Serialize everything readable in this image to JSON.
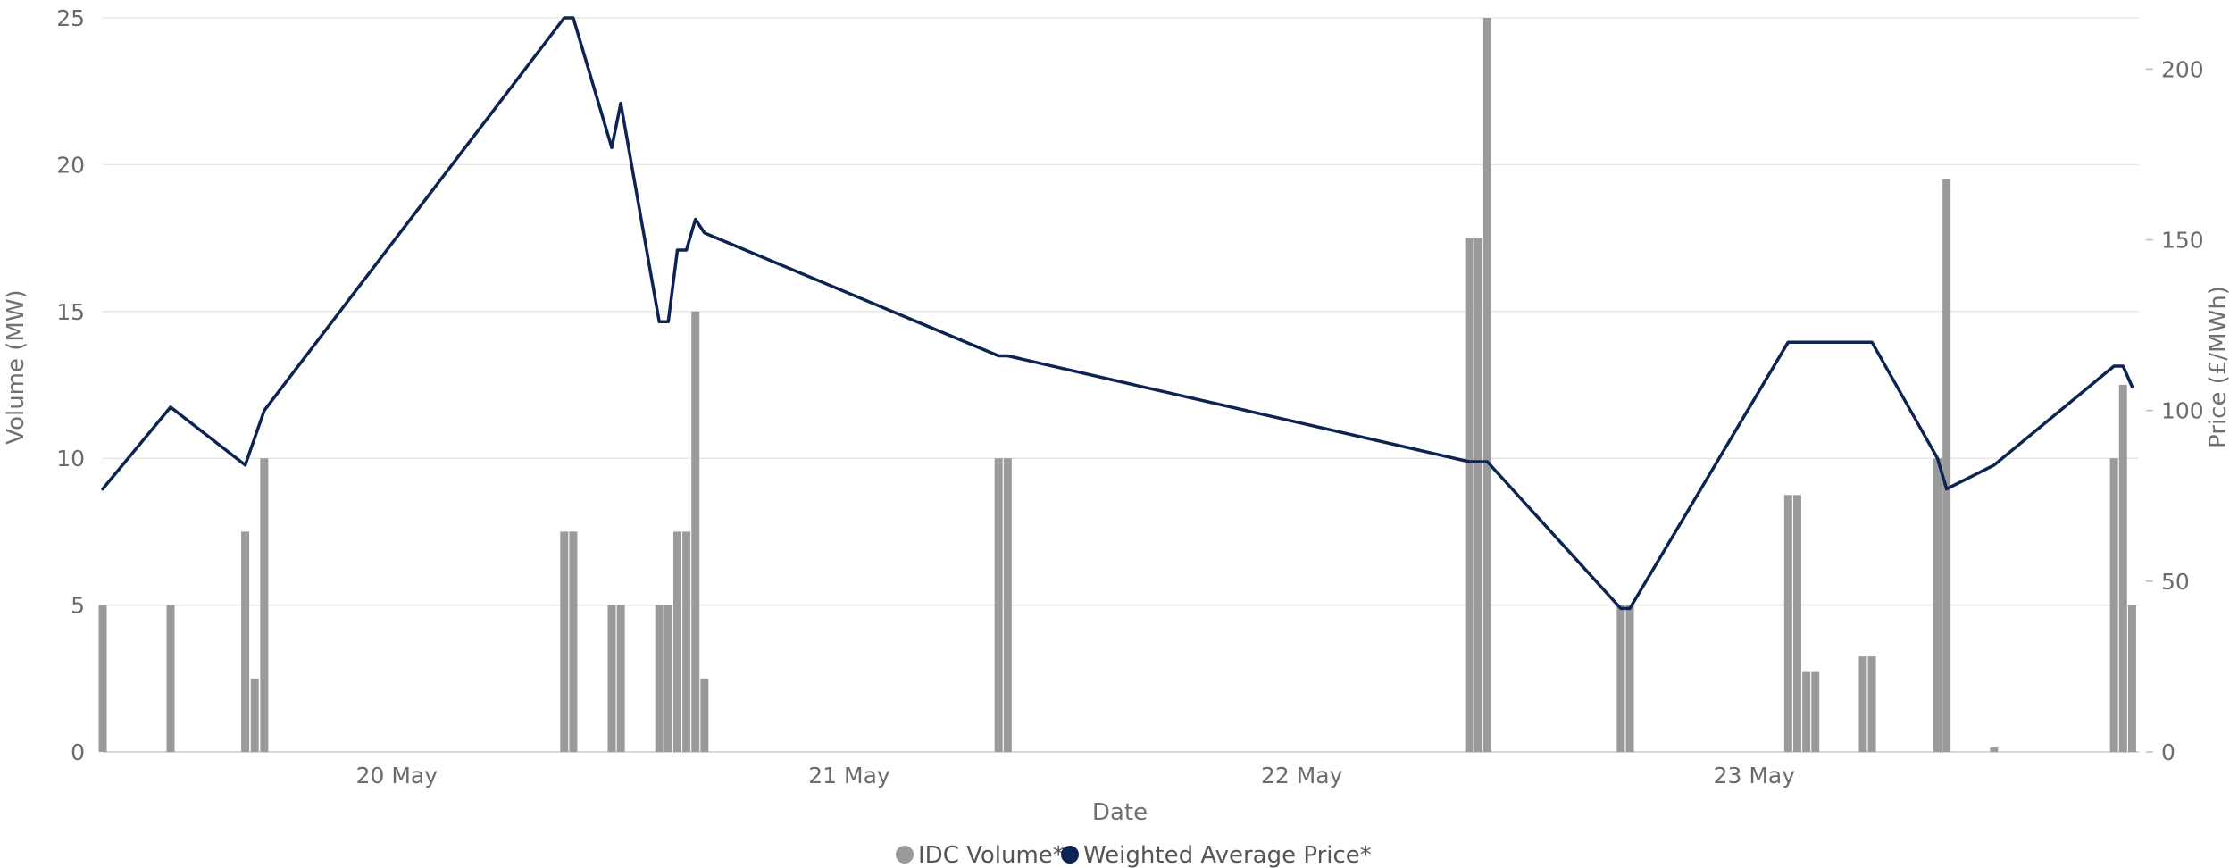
{
  "chart_data": {
    "type": "bar",
    "title": "",
    "xlabel": "Date",
    "ylabel_left": "Volume (MW)",
    "ylabel_right": "Price (£/MWh)",
    "x_range": [
      0,
      4.5
    ],
    "x_ticks": [
      {
        "x": 0.65,
        "label": "20 May"
      },
      {
        "x": 1.65,
        "label": "21 May"
      },
      {
        "x": 2.65,
        "label": "22 May"
      },
      {
        "x": 3.65,
        "label": "23 May"
      }
    ],
    "y_left": {
      "range": [
        0,
        25
      ],
      "ticks": [
        0,
        5,
        10,
        15,
        20,
        25
      ]
    },
    "y_right": {
      "range": [
        0,
        215
      ],
      "ticks": [
        0,
        50,
        100,
        150,
        200
      ]
    },
    "grid": true,
    "legend_position": "bottom",
    "series": [
      {
        "name": "IDC Volume*",
        "type": "bar",
        "axis": "left",
        "color": "#9a9a9a",
        "points": [
          {
            "x": 0.0,
            "y": 5
          },
          {
            "x": 0.15,
            "y": 5
          },
          {
            "x": 0.315,
            "y": 7.5
          },
          {
            "x": 0.336,
            "y": 2.5
          },
          {
            "x": 0.357,
            "y": 10
          },
          {
            "x": 1.02,
            "y": 7.5
          },
          {
            "x": 1.04,
            "y": 7.5
          },
          {
            "x": 1.125,
            "y": 5
          },
          {
            "x": 1.145,
            "y": 5
          },
          {
            "x": 1.23,
            "y": 5
          },
          {
            "x": 1.25,
            "y": 5
          },
          {
            "x": 1.27,
            "y": 7.5
          },
          {
            "x": 1.29,
            "y": 7.5
          },
          {
            "x": 1.31,
            "y": 15
          },
          {
            "x": 1.33,
            "y": 2.5
          },
          {
            "x": 1.98,
            "y": 10
          },
          {
            "x": 2.0,
            "y": 10
          },
          {
            "x": 3.02,
            "y": 17.5
          },
          {
            "x": 3.04,
            "y": 17.5
          },
          {
            "x": 3.06,
            "y": 25
          },
          {
            "x": 3.355,
            "y": 5
          },
          {
            "x": 3.375,
            "y": 5
          },
          {
            "x": 3.725,
            "y": 8.75
          },
          {
            "x": 3.745,
            "y": 8.75
          },
          {
            "x": 3.765,
            "y": 2.75
          },
          {
            "x": 3.785,
            "y": 2.75
          },
          {
            "x": 3.89,
            "y": 3.25
          },
          {
            "x": 3.91,
            "y": 3.25
          },
          {
            "x": 4.055,
            "y": 10
          },
          {
            "x": 4.075,
            "y": 19.5
          },
          {
            "x": 4.18,
            "y": 0.15
          },
          {
            "x": 4.445,
            "y": 10
          },
          {
            "x": 4.465,
            "y": 12.5
          },
          {
            "x": 4.485,
            "y": 5
          }
        ]
      },
      {
        "name": "Weighted Average Price*",
        "type": "line",
        "axis": "right",
        "color": "#0d2352",
        "points": [
          {
            "x": 0.0,
            "y": 77
          },
          {
            "x": 0.15,
            "y": 101
          },
          {
            "x": 0.315,
            "y": 84
          },
          {
            "x": 0.336,
            "y": 92
          },
          {
            "x": 0.357,
            "y": 100
          },
          {
            "x": 1.02,
            "y": 215
          },
          {
            "x": 1.04,
            "y": 215
          },
          {
            "x": 1.125,
            "y": 177
          },
          {
            "x": 1.145,
            "y": 190
          },
          {
            "x": 1.23,
            "y": 126
          },
          {
            "x": 1.25,
            "y": 126
          },
          {
            "x": 1.27,
            "y": 147
          },
          {
            "x": 1.29,
            "y": 147
          },
          {
            "x": 1.31,
            "y": 156
          },
          {
            "x": 1.33,
            "y": 152
          },
          {
            "x": 1.98,
            "y": 116
          },
          {
            "x": 2.0,
            "y": 116
          },
          {
            "x": 3.02,
            "y": 85
          },
          {
            "x": 3.04,
            "y": 85
          },
          {
            "x": 3.06,
            "y": 85
          },
          {
            "x": 3.355,
            "y": 42
          },
          {
            "x": 3.375,
            "y": 42
          },
          {
            "x": 3.725,
            "y": 120
          },
          {
            "x": 3.745,
            "y": 120
          },
          {
            "x": 3.765,
            "y": 120
          },
          {
            "x": 3.785,
            "y": 120
          },
          {
            "x": 3.89,
            "y": 120
          },
          {
            "x": 3.91,
            "y": 120
          },
          {
            "x": 4.055,
            "y": 86
          },
          {
            "x": 4.075,
            "y": 77
          },
          {
            "x": 4.18,
            "y": 84
          },
          {
            "x": 4.445,
            "y": 113
          },
          {
            "x": 4.465,
            "y": 113
          },
          {
            "x": 4.485,
            "y": 107
          }
        ]
      }
    ]
  }
}
